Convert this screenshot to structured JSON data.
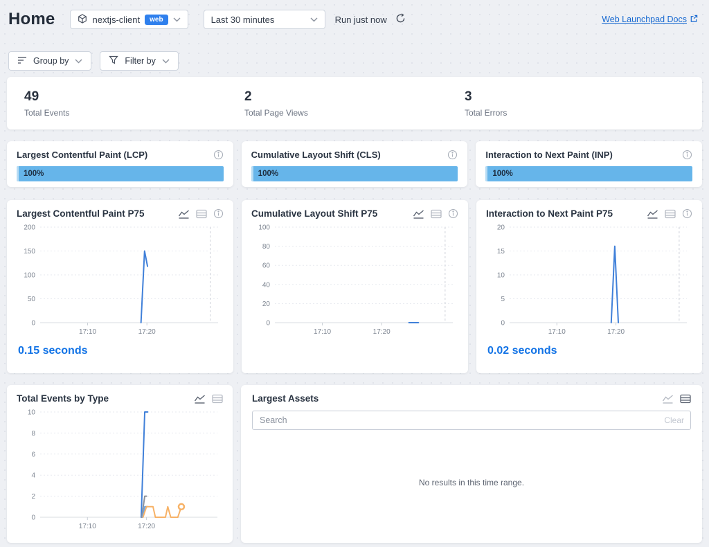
{
  "header": {
    "title": "Home",
    "project_selector": {
      "name": "nextjs-client",
      "badge": "web"
    },
    "time_range_selector": {
      "value": "Last 30 minutes"
    },
    "run_status": "Run just now",
    "docs_link": "Web Launchpad Docs"
  },
  "toolbar": {
    "group_by_label": "Group by",
    "filter_by_label": "Filter by"
  },
  "stats": [
    {
      "value": "49",
      "label": "Total Events"
    },
    {
      "value": "2",
      "label": "Total Page Views"
    },
    {
      "value": "3",
      "label": "Total Errors"
    }
  ],
  "metrics": [
    {
      "title": "Largest Contentful Paint (LCP)",
      "bar_label": "100%",
      "bar_pct": 100,
      "bar_color": "#66b5ea"
    },
    {
      "title": "Cumulative Layout Shift (CLS)",
      "bar_label": "100%",
      "bar_pct": 100,
      "bar_color": "#66b5ea"
    },
    {
      "title": "Interaction to Next Paint (INP)",
      "bar_label": "100%",
      "bar_pct": 100,
      "bar_color": "#66b5ea"
    }
  ],
  "assets_panel": {
    "title": "Largest Assets",
    "search_placeholder": "Search",
    "clear_label": "Clear",
    "empty_message": "No results in this time range."
  },
  "colors": {
    "accent_blue": "#2f80ed",
    "line_blue": "#4080d9",
    "line_orange": "#f7b267",
    "line_gray": "#8b919b",
    "bar_blue": "#66b5ea",
    "link_blue": "#1769d1",
    "value_blue": "#1273e6"
  },
  "chart_data": [
    {
      "type": "line",
      "title": "Largest Contentful Paint P75",
      "ylabel": "",
      "xlabel": "",
      "x_axis": {
        "domain_minutes": [
          2,
          32
        ],
        "ticks": [
          {
            "m": 10,
            "label": "17:10"
          },
          {
            "m": 20,
            "label": "17:20"
          }
        ],
        "now_marker_m": 30.7
      },
      "y_axis": {
        "lim": [
          0,
          200
        ],
        "ticks": [
          0,
          50,
          100,
          150,
          200
        ]
      },
      "series": [
        {
          "color": "#4080d9",
          "points": [
            [
              19.0,
              0
            ],
            [
              19.6,
              150
            ],
            [
              20.1,
              118
            ]
          ]
        }
      ],
      "summary_value": "0.15 seconds"
    },
    {
      "type": "line",
      "title": "Cumulative Layout Shift P75",
      "ylabel": "",
      "xlabel": "",
      "x_axis": {
        "domain_minutes": [
          2,
          32
        ],
        "ticks": [
          {
            "m": 10,
            "label": "17:10"
          },
          {
            "m": 20,
            "label": "17:20"
          }
        ],
        "now_marker_m": 30.7
      },
      "y_axis": {
        "lim": [
          0,
          100
        ],
        "ticks": [
          0,
          20,
          40,
          60,
          80,
          100
        ]
      },
      "series": [
        {
          "color": "#4080d9",
          "points": [
            [
              24.6,
              0
            ],
            [
              26.2,
              0
            ]
          ]
        }
      ]
    },
    {
      "type": "line",
      "title": "Interaction to Next Paint P75",
      "ylabel": "",
      "xlabel": "",
      "x_axis": {
        "domain_minutes": [
          2,
          32
        ],
        "ticks": [
          {
            "m": 10,
            "label": "17:10"
          },
          {
            "m": 20,
            "label": "17:20"
          }
        ],
        "now_marker_m": 30.7
      },
      "y_axis": {
        "lim": [
          0,
          20
        ],
        "ticks": [
          0,
          5,
          10,
          15,
          20
        ]
      },
      "series": [
        {
          "color": "#4080d9",
          "points": [
            [
              19.2,
              0
            ],
            [
              19.8,
              16
            ],
            [
              20.4,
              0
            ]
          ]
        }
      ],
      "summary_value": "0.02 seconds"
    },
    {
      "type": "line",
      "title": "Total Events by Type",
      "ylabel": "",
      "xlabel": "",
      "x_axis": {
        "domain_minutes": [
          2,
          32
        ],
        "ticks": [
          {
            "m": 10,
            "label": "17:10"
          },
          {
            "m": 20,
            "label": "17:20"
          }
        ]
      },
      "y_axis": {
        "lim": [
          0,
          10
        ],
        "ticks": [
          0,
          2,
          4,
          6,
          8,
          10
        ]
      },
      "series": [
        {
          "color": "#4080d9",
          "points": [
            [
              19.1,
              0
            ],
            [
              19.7,
              10
            ],
            [
              20.2,
              10
            ]
          ]
        },
        {
          "color": "#8b919b",
          "points": [
            [
              19.2,
              0
            ],
            [
              19.7,
              2
            ],
            [
              20.0,
              2
            ]
          ]
        },
        {
          "color": "#6ea3e0",
          "points": [
            [
              19.3,
              0
            ],
            [
              19.7,
              1
            ],
            [
              20.2,
              1
            ]
          ]
        },
        {
          "color": "#f7b267",
          "points": [
            [
              19.4,
              0
            ],
            [
              20.0,
              1
            ],
            [
              21.1,
              1
            ],
            [
              21.5,
              0
            ],
            [
              23.2,
              0
            ],
            [
              23.6,
              1
            ],
            [
              24.1,
              0
            ],
            [
              25.3,
              0
            ],
            [
              25.9,
              1
            ]
          ],
          "end_marker": true
        }
      ]
    }
  ]
}
